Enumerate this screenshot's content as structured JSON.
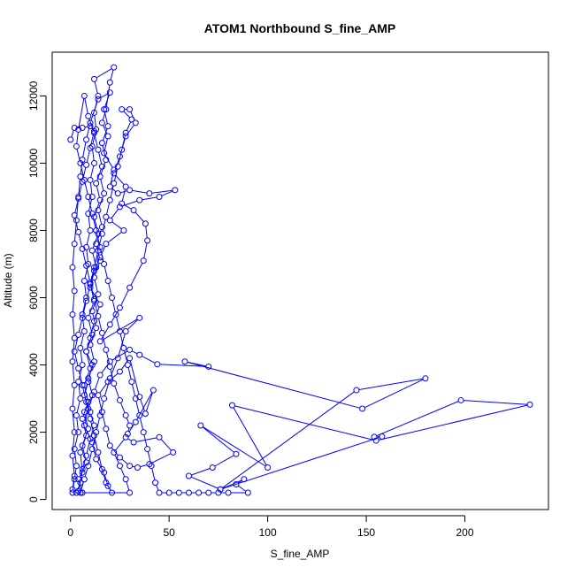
{
  "chart_data": {
    "type": "scatter",
    "title": "ATOM1 Northbound S_fine_AMP",
    "xlabel": "S_fine_AMP",
    "ylabel": "Altitude (m)",
    "xlim": [
      -9.3,
      242.4
    ],
    "ylim": [
      -300,
      13300
    ],
    "x_ticks": [
      0,
      50,
      100,
      150,
      200
    ],
    "y_ticks": [
      0,
      2000,
      4000,
      6000,
      8000,
      10000,
      12000
    ],
    "grid": false,
    "legend": "none",
    "marker": "open-circle",
    "connect_points": true,
    "series": [
      {
        "color": "#0000ff",
        "points": [
          [
            1,
            200
          ],
          [
            2,
            600
          ],
          [
            3,
            1000
          ],
          [
            2,
            1500
          ],
          [
            4,
            2000
          ],
          [
            3,
            2500
          ],
          [
            5,
            3000
          ],
          [
            4,
            3500
          ],
          [
            6,
            4000
          ],
          [
            5,
            4500
          ],
          [
            7,
            5000
          ],
          [
            6,
            5500
          ],
          [
            8,
            6000
          ],
          [
            7,
            6500
          ],
          [
            9,
            7000
          ],
          [
            8,
            7500
          ],
          [
            10,
            8000
          ],
          [
            9,
            8500
          ],
          [
            11,
            9000
          ],
          [
            10,
            9500
          ],
          [
            12,
            10000
          ],
          [
            11,
            10500
          ],
          [
            13,
            11000
          ],
          [
            12,
            11500
          ],
          [
            14,
            12000
          ],
          [
            12,
            12500
          ],
          [
            22,
            12850
          ],
          [
            20,
            12400
          ],
          [
            18,
            11600
          ],
          [
            16,
            11200
          ],
          [
            19,
            10800
          ],
          [
            17,
            10300
          ],
          [
            22,
            9800
          ],
          [
            20,
            9300
          ],
          [
            24,
            9100
          ],
          [
            30,
            9200
          ],
          [
            40,
            9100
          ],
          [
            53,
            9200
          ],
          [
            45,
            9000
          ],
          [
            35,
            8900
          ],
          [
            25,
            8700
          ],
          [
            20,
            8300
          ],
          [
            27,
            8000
          ],
          [
            18,
            7600
          ],
          [
            15,
            7200
          ],
          [
            12,
            6800
          ],
          [
            10,
            6300
          ],
          [
            15,
            5800
          ],
          [
            12,
            5300
          ],
          [
            10,
            4800
          ],
          [
            8,
            4400
          ],
          [
            11,
            4000
          ],
          [
            9,
            3500
          ],
          [
            7,
            3100
          ],
          [
            10,
            2600
          ],
          [
            12,
            2200
          ],
          [
            10,
            1800
          ],
          [
            8,
            1300
          ],
          [
            6,
            900
          ],
          [
            5,
            500
          ],
          [
            3,
            200
          ],
          [
            6,
            200
          ],
          [
            4,
            600
          ],
          [
            8,
            1100
          ],
          [
            6,
            1600
          ],
          [
            9,
            2100
          ],
          [
            7,
            2600
          ],
          [
            11,
            3100
          ],
          [
            9,
            3600
          ],
          [
            12,
            4100
          ],
          [
            10,
            4600
          ],
          [
            13,
            5100
          ],
          [
            11,
            5600
          ],
          [
            14,
            6100
          ],
          [
            12,
            6600
          ],
          [
            15,
            7100
          ],
          [
            13,
            7600
          ],
          [
            16,
            8100
          ],
          [
            14,
            8600
          ],
          [
            17,
            9100
          ],
          [
            15,
            9600
          ],
          [
            18,
            10100
          ],
          [
            16,
            10600
          ],
          [
            19,
            11100
          ],
          [
            17,
            11600
          ],
          [
            20,
            12100
          ],
          [
            14,
            11900
          ],
          [
            10,
            11200
          ],
          [
            8,
            10700
          ],
          [
            6,
            10100
          ],
          [
            5,
            9600
          ],
          [
            4,
            9000
          ],
          [
            3,
            8300
          ],
          [
            2,
            7600
          ],
          [
            1,
            6900
          ],
          [
            2,
            6200
          ],
          [
            1,
            5500
          ],
          [
            2,
            4800
          ],
          [
            1,
            4100
          ],
          [
            2,
            3400
          ],
          [
            1,
            2700
          ],
          [
            2,
            2000
          ],
          [
            1,
            1300
          ],
          [
            2,
            700
          ],
          [
            1,
            300
          ],
          [
            4,
            250
          ],
          [
            6,
            800
          ],
          [
            5,
            1400
          ],
          [
            8,
            1900
          ],
          [
            6,
            2400
          ],
          [
            9,
            2900
          ],
          [
            7,
            3400
          ],
          [
            10,
            3900
          ],
          [
            8,
            4400
          ],
          [
            11,
            4900
          ],
          [
            9,
            5400
          ],
          [
            12,
            5900
          ],
          [
            10,
            6400
          ],
          [
            13,
            6900
          ],
          [
            11,
            7400
          ],
          [
            14,
            7900
          ],
          [
            12,
            8400
          ],
          [
            15,
            8900
          ],
          [
            13,
            9400
          ],
          [
            16,
            9900
          ],
          [
            14,
            10400
          ],
          [
            12,
            10900
          ],
          [
            9,
            11400
          ],
          [
            7,
            12000
          ],
          [
            4,
            11000
          ],
          [
            3,
            10500
          ],
          [
            5,
            10000
          ],
          [
            7,
            9500
          ],
          [
            9,
            9000
          ],
          [
            11,
            8500
          ],
          [
            13,
            8000
          ],
          [
            15,
            7500
          ],
          [
            17,
            7000
          ],
          [
            19,
            6500
          ],
          [
            21,
            6000
          ],
          [
            23,
            5500
          ],
          [
            25,
            5000
          ],
          [
            27,
            4500
          ],
          [
            29,
            4000
          ],
          [
            31,
            3500
          ],
          [
            33,
            3000
          ],
          [
            35,
            2500
          ],
          [
            37,
            2000
          ],
          [
            39,
            1500
          ],
          [
            41,
            1000
          ],
          [
            43,
            500
          ],
          [
            45,
            200
          ],
          [
            50,
            200
          ],
          [
            55,
            200
          ],
          [
            60,
            200
          ],
          [
            65,
            200
          ],
          [
            70,
            200
          ],
          [
            75,
            200
          ],
          [
            80,
            200
          ],
          [
            90,
            200
          ],
          [
            84,
            450
          ],
          [
            88,
            600
          ],
          [
            76,
            300
          ],
          [
            60,
            700
          ],
          [
            72,
            950
          ],
          [
            84,
            1350
          ],
          [
            66,
            2200
          ],
          [
            100,
            950
          ],
          [
            82,
            2800
          ],
          [
            155,
            1750
          ],
          [
            233,
            2820
          ],
          [
            198,
            2950
          ],
          [
            154,
            1860
          ],
          [
            158,
            1870
          ],
          [
            76,
            300
          ],
          [
            145,
            3250
          ],
          [
            180,
            3600
          ],
          [
            148,
            2700
          ],
          [
            58,
            4100
          ],
          [
            70,
            3950
          ],
          [
            44,
            4020
          ],
          [
            35,
            4300
          ],
          [
            30,
            4450
          ],
          [
            20,
            4100
          ],
          [
            15,
            3700
          ],
          [
            12,
            3200
          ],
          [
            9,
            2700
          ],
          [
            7,
            2200
          ],
          [
            11,
            1700
          ],
          [
            13,
            1200
          ],
          [
            17,
            800
          ],
          [
            19,
            400
          ],
          [
            21,
            200
          ],
          [
            18,
            500
          ],
          [
            16,
            900
          ],
          [
            14,
            1400
          ],
          [
            12,
            1900
          ],
          [
            10,
            2400
          ],
          [
            8,
            2900
          ],
          [
            6,
            3400
          ],
          [
            4,
            3900
          ],
          [
            2,
            4400
          ],
          [
            4,
            4900
          ],
          [
            6,
            5400
          ],
          [
            8,
            5900
          ],
          [
            10,
            6400
          ],
          [
            12,
            6900
          ],
          [
            14,
            7400
          ],
          [
            16,
            7900
          ],
          [
            18,
            8400
          ],
          [
            20,
            8900
          ],
          [
            22,
            9400
          ],
          [
            24,
            9900
          ],
          [
            26,
            10400
          ],
          [
            28,
            10900
          ],
          [
            31,
            11300
          ],
          [
            26,
            11600
          ],
          [
            30,
            11600
          ],
          [
            33,
            11200
          ],
          [
            28,
            10800
          ],
          [
            25,
            10200
          ],
          [
            22,
            9700
          ],
          [
            28,
            9300
          ],
          [
            26,
            8800
          ],
          [
            32,
            8600
          ],
          [
            38,
            8200
          ],
          [
            39,
            7700
          ],
          [
            37,
            7100
          ],
          [
            30,
            6300
          ],
          [
            25,
            5700
          ],
          [
            20,
            5200
          ],
          [
            15,
            4700
          ],
          [
            35,
            5400
          ],
          [
            28,
            5000
          ],
          [
            24,
            4200
          ],
          [
            20,
            3600
          ],
          [
            17,
            3000
          ],
          [
            15,
            2500
          ],
          [
            13,
            2000
          ],
          [
            11,
            1500
          ],
          [
            9,
            1000
          ],
          [
            7,
            600
          ],
          [
            5,
            200
          ],
          [
            30,
            200
          ],
          [
            28,
            600
          ],
          [
            25,
            1000
          ],
          [
            22,
            1400
          ],
          [
            28,
            1850
          ],
          [
            32,
            1700
          ],
          [
            45,
            1850
          ],
          [
            52,
            1400
          ],
          [
            40,
            1050
          ],
          [
            34,
            950
          ],
          [
            30,
            1000
          ],
          [
            25,
            1250
          ],
          [
            20,
            1600
          ],
          [
            18,
            2100
          ],
          [
            16,
            2600
          ],
          [
            14,
            3100
          ],
          [
            19,
            3500
          ],
          [
            25,
            3800
          ],
          [
            30,
            4200
          ],
          [
            35,
            3050
          ],
          [
            38,
            2550
          ],
          [
            42,
            3250
          ],
          [
            33,
            2300
          ],
          [
            29,
            1950
          ],
          [
            30,
            2200
          ],
          [
            28,
            2500
          ],
          [
            25,
            2950
          ],
          [
            22,
            3450
          ],
          [
            20,
            3950
          ],
          [
            18,
            4450
          ],
          [
            16,
            4950
          ],
          [
            14,
            5450
          ],
          [
            12,
            5950
          ],
          [
            10,
            6450
          ],
          [
            8,
            6950
          ],
          [
            6,
            7450
          ],
          [
            4,
            7950
          ],
          [
            2,
            8450
          ],
          [
            4,
            8950
          ],
          [
            6,
            9450
          ],
          [
            8,
            9950
          ],
          [
            10,
            10450
          ],
          [
            12,
            10950
          ],
          [
            10,
            11100
          ],
          [
            6,
            11050
          ],
          [
            2,
            11050
          ],
          [
            0,
            10700
          ]
        ]
      }
    ]
  }
}
